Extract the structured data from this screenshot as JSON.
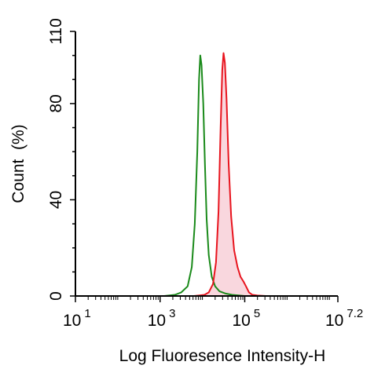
{
  "chart_data": {
    "type": "area",
    "title": "",
    "xlabel": "Log Fluoresence Intensity-H",
    "ylabel": "Count  (%)",
    "xscale": "log",
    "xlim_exponent": [
      1,
      7.2
    ],
    "ylim": [
      0,
      110
    ],
    "grid": false,
    "legend": "none",
    "x_ticks": [
      {
        "base": "10",
        "exponent": "1"
      },
      {
        "base": "10",
        "exponent": "3"
      },
      {
        "base": "10",
        "exponent": "5"
      },
      {
        "base": "10",
        "exponent": "7.2"
      }
    ],
    "y_ticks": [
      "0",
      "40",
      "80",
      "110"
    ],
    "series": [
      {
        "color": "#1a8a1a",
        "fill": "none",
        "x_exponent": [
          1.0,
          3.1,
          3.35,
          3.5,
          3.65,
          3.75,
          3.82,
          3.88,
          3.92,
          3.95,
          3.98,
          4.02,
          4.06,
          4.1,
          4.15,
          4.22,
          4.3,
          4.4,
          4.55,
          4.7,
          5.0,
          7.2
        ],
        "y": [
          0,
          0,
          0.5,
          1.5,
          4,
          12,
          30,
          60,
          90,
          100,
          96,
          80,
          55,
          32,
          17,
          8,
          4,
          2,
          1,
          0.5,
          0,
          0
        ]
      },
      {
        "color": "#e8141e",
        "fill": "#f8d3da",
        "x_exponent": [
          1.0,
          3.8,
          4.05,
          4.15,
          4.25,
          4.32,
          4.38,
          4.43,
          4.47,
          4.5,
          4.53,
          4.57,
          4.62,
          4.68,
          4.75,
          4.83,
          4.9,
          4.97,
          5.03,
          5.1,
          5.18,
          5.3,
          5.5,
          7.2
        ],
        "y": [
          0,
          0,
          0.5,
          1.5,
          5,
          14,
          35,
          70,
          94,
          101,
          97,
          82,
          55,
          33,
          19,
          12,
          8,
          6,
          4,
          1.5,
          0.5,
          0.2,
          0,
          0
        ]
      }
    ]
  }
}
